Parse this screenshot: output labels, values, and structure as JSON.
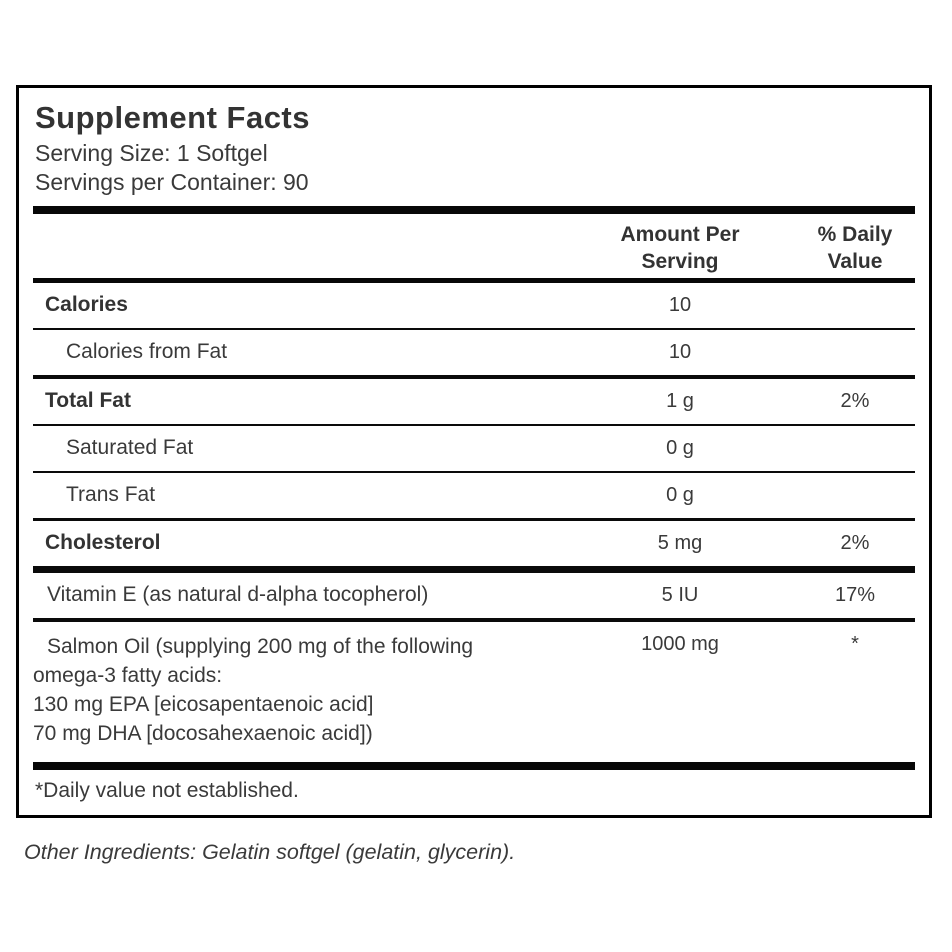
{
  "label": {
    "title": "Supplement Facts",
    "serving_size": "Serving Size: 1 Softgel",
    "servings_per_container": "Servings per Container: 90",
    "columns": {
      "amount": [
        "Amount Per",
        "Serving"
      ],
      "daily_value": [
        "% Daily",
        "Value"
      ]
    },
    "rows": [
      {
        "name": "Calories",
        "amount": "10",
        "dv": ""
      },
      {
        "name": "Calories from Fat",
        "amount": "10",
        "dv": ""
      },
      {
        "name": "Total Fat",
        "amount": "1 g",
        "dv": "2%"
      },
      {
        "name": "Saturated Fat",
        "amount": "0 g",
        "dv": ""
      },
      {
        "name": "Trans Fat",
        "amount": "0 g",
        "dv": ""
      },
      {
        "name": "Cholesterol",
        "amount": "5 mg",
        "dv": "2%"
      },
      {
        "name": "Vitamin E (as natural d-alpha tocopherol)",
        "amount": "5 IU",
        "dv": "17%"
      },
      {
        "name": [
          "Salmon Oil (supplying 200 mg of the following",
          "omega-3 fatty acids:",
          "130 mg EPA [eicosapentaenoic acid]",
          "70 mg DHA [docosahexaenoic acid])"
        ],
        "amount": "1000 mg",
        "dv": "*"
      }
    ],
    "footnote": "*Daily value not established."
  },
  "other_ingredients": "Other Ingredients: Gelatin softgel (gelatin, glycerin)."
}
